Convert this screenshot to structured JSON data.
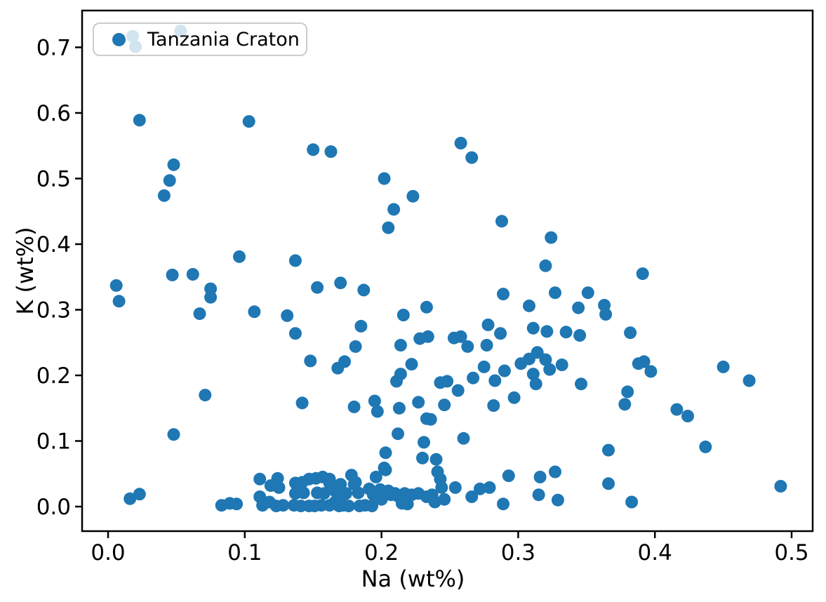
{
  "figure": {
    "background": "#ffffff"
  },
  "colors": {
    "marker": "#1f77b4",
    "axis": "#000000",
    "legend_border": "#cccccc",
    "legend_background": "rgba(255,255,255,0.8)"
  },
  "chart_data": {
    "type": "scatter",
    "title": "",
    "xlabel": "Na (wt%)",
    "ylabel": "K (wt%)",
    "xlim": [
      -0.019,
      0.5154
    ],
    "ylim": [
      -0.0374,
      0.7561
    ],
    "x_ticks": [
      0.0,
      0.1,
      0.2,
      0.3,
      0.4,
      0.5
    ],
    "y_ticks": [
      0.0,
      0.1,
      0.2,
      0.3,
      0.4,
      0.5,
      0.6,
      0.7
    ],
    "grid": false,
    "marker_radius_px": 9,
    "legend": {
      "position": "upper left",
      "entries": [
        {
          "label": "Tanzania Craton",
          "color": "#1f77b4"
        }
      ]
    },
    "series": [
      {
        "name": "Tanzania Craton",
        "color": "#1f77b4",
        "points": [
          [
            0.018,
            0.717
          ],
          [
            0.02,
            0.701
          ],
          [
            0.053,
            0.725
          ],
          [
            0.023,
            0.589
          ],
          [
            0.048,
            0.521
          ],
          [
            0.045,
            0.497
          ],
          [
            0.041,
            0.474
          ],
          [
            0.006,
            0.337
          ],
          [
            0.008,
            0.313
          ],
          [
            0.047,
            0.353
          ],
          [
            0.062,
            0.354
          ],
          [
            0.075,
            0.332
          ],
          [
            0.075,
            0.319
          ],
          [
            0.067,
            0.294
          ],
          [
            0.048,
            0.11
          ],
          [
            0.016,
            0.012
          ],
          [
            0.023,
            0.019
          ],
          [
            0.071,
            0.17
          ],
          [
            0.103,
            0.587
          ],
          [
            0.15,
            0.544
          ],
          [
            0.163,
            0.541
          ],
          [
            0.096,
            0.381
          ],
          [
            0.137,
            0.375
          ],
          [
            0.107,
            0.297
          ],
          [
            0.131,
            0.291
          ],
          [
            0.153,
            0.334
          ],
          [
            0.17,
            0.341
          ],
          [
            0.187,
            0.33
          ],
          [
            0.137,
            0.264
          ],
          [
            0.185,
            0.275
          ],
          [
            0.142,
            0.158
          ],
          [
            0.148,
            0.222
          ],
          [
            0.202,
            0.5
          ],
          [
            0.209,
            0.453
          ],
          [
            0.205,
            0.425
          ],
          [
            0.223,
            0.473
          ],
          [
            0.258,
            0.554
          ],
          [
            0.266,
            0.532
          ],
          [
            0.288,
            0.435
          ],
          [
            0.233,
            0.304
          ],
          [
            0.216,
            0.292
          ],
          [
            0.228,
            0.256
          ],
          [
            0.234,
            0.259
          ],
          [
            0.253,
            0.257
          ],
          [
            0.258,
            0.259
          ],
          [
            0.263,
            0.244
          ],
          [
            0.277,
            0.246
          ],
          [
            0.278,
            0.277
          ],
          [
            0.287,
            0.264
          ],
          [
            0.214,
            0.246
          ],
          [
            0.181,
            0.244
          ],
          [
            0.324,
            0.41
          ],
          [
            0.32,
            0.367
          ],
          [
            0.327,
            0.326
          ],
          [
            0.308,
            0.306
          ],
          [
            0.289,
            0.324
          ],
          [
            0.311,
            0.272
          ],
          [
            0.321,
            0.267
          ],
          [
            0.344,
            0.303
          ],
          [
            0.351,
            0.326
          ],
          [
            0.363,
            0.307
          ],
          [
            0.364,
            0.293
          ],
          [
            0.391,
            0.355
          ],
          [
            0.335,
            0.266
          ],
          [
            0.345,
            0.261
          ],
          [
            0.382,
            0.265
          ],
          [
            0.314,
            0.235
          ],
          [
            0.308,
            0.225
          ],
          [
            0.32,
            0.224
          ],
          [
            0.168,
            0.211
          ],
          [
            0.173,
            0.221
          ],
          [
            0.214,
            0.202
          ],
          [
            0.222,
            0.217
          ],
          [
            0.211,
            0.191
          ],
          [
            0.243,
            0.189
          ],
          [
            0.248,
            0.191
          ],
          [
            0.267,
            0.196
          ],
          [
            0.275,
            0.213
          ],
          [
            0.29,
            0.207
          ],
          [
            0.283,
            0.192
          ],
          [
            0.302,
            0.218
          ],
          [
            0.311,
            0.202
          ],
          [
            0.313,
            0.187
          ],
          [
            0.323,
            0.209
          ],
          [
            0.332,
            0.216
          ],
          [
            0.346,
            0.187
          ],
          [
            0.388,
            0.218
          ],
          [
            0.392,
            0.221
          ],
          [
            0.397,
            0.206
          ],
          [
            0.45,
            0.213
          ],
          [
            0.469,
            0.192
          ],
          [
            0.256,
            0.177
          ],
          [
            0.18,
            0.152
          ],
          [
            0.195,
            0.161
          ],
          [
            0.197,
            0.145
          ],
          [
            0.213,
            0.15
          ],
          [
            0.227,
            0.159
          ],
          [
            0.246,
            0.155
          ],
          [
            0.282,
            0.154
          ],
          [
            0.297,
            0.166
          ],
          [
            0.233,
            0.134
          ],
          [
            0.236,
            0.133
          ],
          [
            0.212,
            0.111
          ],
          [
            0.231,
            0.098
          ],
          [
            0.26,
            0.104
          ],
          [
            0.38,
            0.175
          ],
          [
            0.378,
            0.156
          ],
          [
            0.416,
            0.148
          ],
          [
            0.424,
            0.138
          ],
          [
            0.437,
            0.091
          ],
          [
            0.366,
            0.086
          ],
          [
            0.203,
            0.082
          ],
          [
            0.202,
            0.059
          ],
          [
            0.23,
            0.074
          ],
          [
            0.24,
            0.072
          ],
          [
            0.241,
            0.053
          ],
          [
            0.243,
            0.042
          ],
          [
            0.244,
            0.029
          ],
          [
            0.254,
            0.029
          ],
          [
            0.083,
            0.002
          ],
          [
            0.089,
            0.005
          ],
          [
            0.094,
            0.004
          ],
          [
            0.111,
            0.042
          ],
          [
            0.111,
            0.015
          ],
          [
            0.113,
            0.002
          ],
          [
            0.118,
            0.007
          ],
          [
            0.119,
            0.032
          ],
          [
            0.123,
            0.001
          ],
          [
            0.124,
            0.043
          ],
          [
            0.125,
            0.029
          ],
          [
            0.128,
            0.002
          ],
          [
            0.136,
            0.002
          ],
          [
            0.137,
            0.036
          ],
          [
            0.137,
            0.02
          ],
          [
            0.141,
            0.001
          ],
          [
            0.142,
            0.037
          ],
          [
            0.143,
            0.021
          ],
          [
            0.147,
            0.042
          ],
          [
            0.147,
            0.001
          ],
          [
            0.151,
            0.001
          ],
          [
            0.152,
            0.043
          ],
          [
            0.153,
            0.021
          ],
          [
            0.156,
            0.002
          ],
          [
            0.157,
            0.045
          ],
          [
            0.158,
            0.02
          ],
          [
            0.162,
            0.042
          ],
          [
            0.162,
            0.036
          ],
          [
            0.162,
            0.002
          ],
          [
            0.166,
            0.024
          ],
          [
            0.166,
            0.007
          ],
          [
            0.169,
            0.018
          ],
          [
            0.169,
            0.001
          ],
          [
            0.17,
            0.034
          ],
          [
            0.171,
            0.015
          ],
          [
            0.172,
            0.002
          ],
          [
            0.174,
            0.02
          ],
          [
            0.176,
            0.001
          ],
          [
            0.178,
            0.048
          ],
          [
            0.18,
            0.034
          ],
          [
            0.181,
            0.037
          ],
          [
            0.183,
            0.021
          ],
          [
            0.184,
            0.001
          ],
          [
            0.188,
            0.002
          ],
          [
            0.191,
            0.027
          ],
          [
            0.193,
            0.001
          ],
          [
            0.194,
            0.018
          ],
          [
            0.196,
            0.045
          ],
          [
            0.199,
            0.026
          ],
          [
            0.2,
            0.011
          ],
          [
            0.203,
            0.056
          ],
          [
            0.205,
            0.024
          ],
          [
            0.207,
            0.018
          ],
          [
            0.21,
            0.02
          ],
          [
            0.212,
            0.016
          ],
          [
            0.215,
            0.005
          ],
          [
            0.217,
            0.02
          ],
          [
            0.219,
            0.004
          ],
          [
            0.222,
            0.018
          ],
          [
            0.227,
            0.02
          ],
          [
            0.233,
            0.015
          ],
          [
            0.237,
            0.018
          ],
          [
            0.239,
            0.007
          ],
          [
            0.246,
            0.011
          ],
          [
            0.266,
            0.015
          ],
          [
            0.272,
            0.027
          ],
          [
            0.279,
            0.029
          ],
          [
            0.289,
            0.004
          ],
          [
            0.293,
            0.047
          ],
          [
            0.315,
            0.018
          ],
          [
            0.316,
            0.045
          ],
          [
            0.327,
            0.053
          ],
          [
            0.329,
            0.01
          ],
          [
            0.366,
            0.035
          ],
          [
            0.383,
            0.007
          ],
          [
            0.492,
            0.031
          ]
        ]
      }
    ]
  }
}
